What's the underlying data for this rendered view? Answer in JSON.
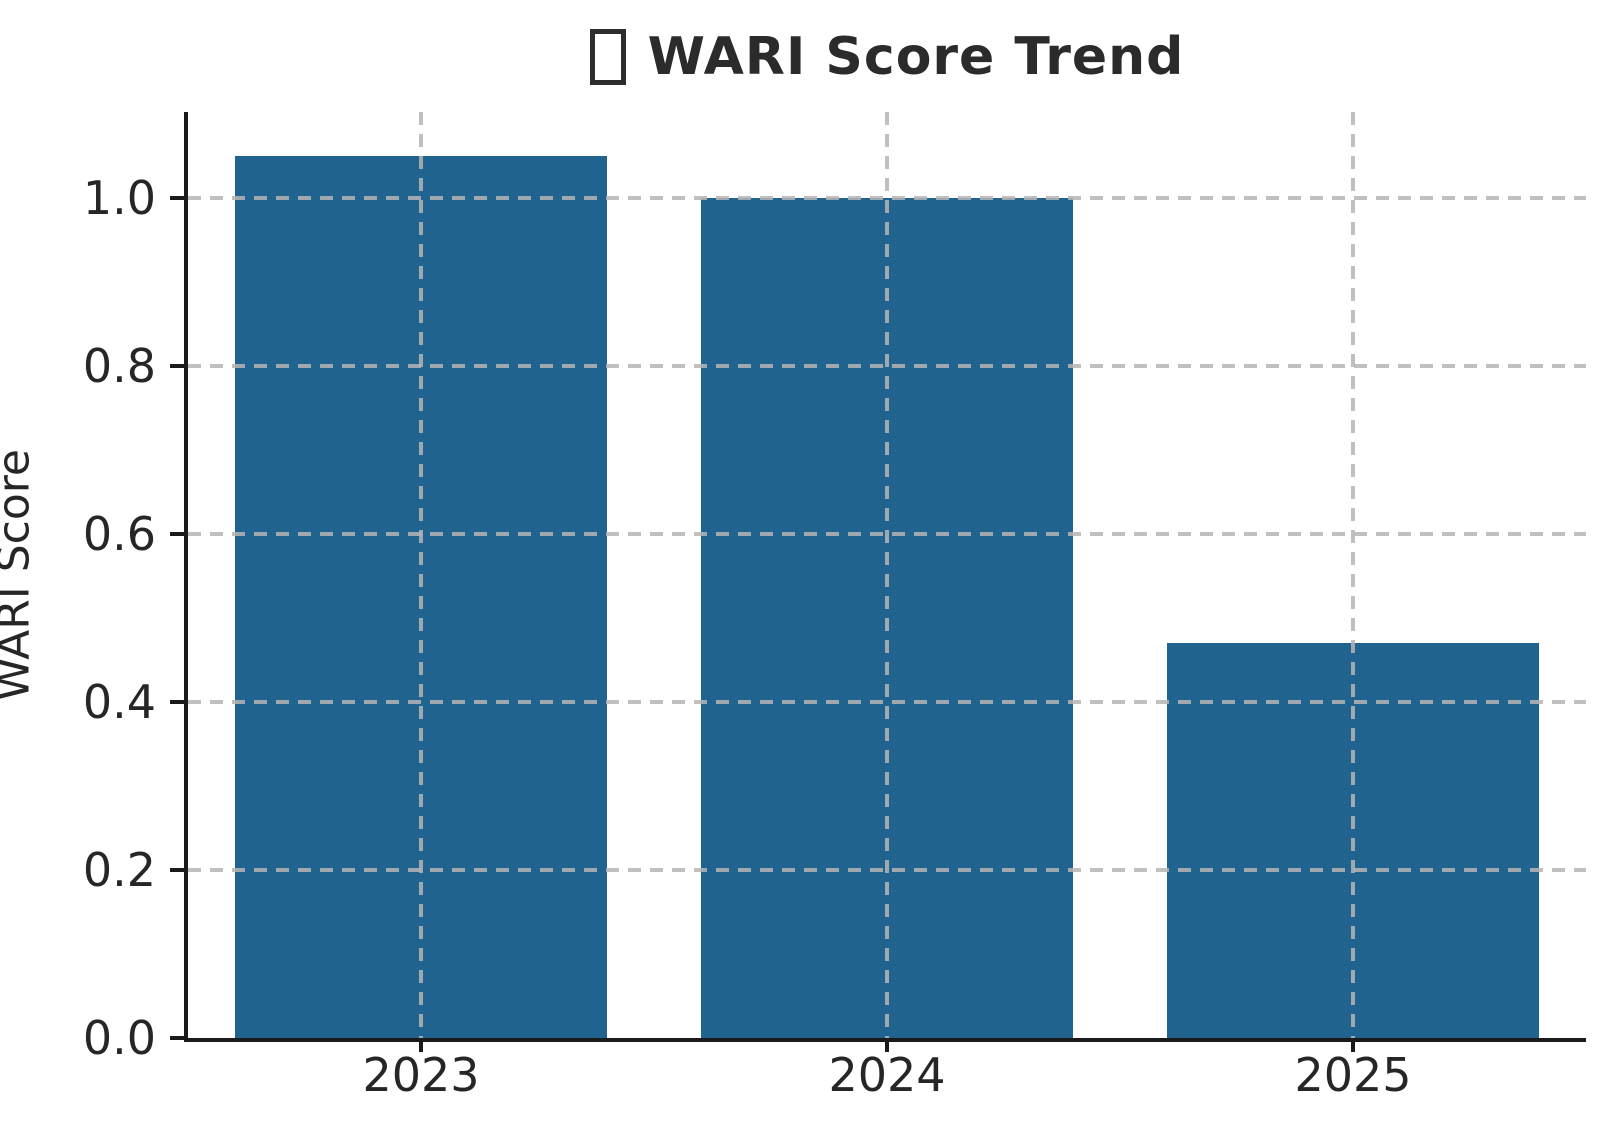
{
  "chart_data": {
    "type": "bar",
    "title": "WARI Score Trend",
    "title_prefix_icon": "missing-glyph-box-icon",
    "categories": [
      "2023",
      "2024",
      "2025"
    ],
    "values": [
      1.05,
      1.0,
      0.47
    ],
    "xlabel": "",
    "ylabel": "WARI Score",
    "ylim": [
      0,
      1.1025
    ],
    "yticks": [
      0.0,
      0.2,
      0.4,
      0.6,
      0.8,
      1.0
    ],
    "ytick_labels": [
      "0.0",
      "0.2",
      "0.4",
      "0.6",
      "0.8",
      "1.0"
    ],
    "bar_width_fraction": 0.8,
    "grid": "dashed, horizontal and vertical, drawn over bars",
    "legend": "none",
    "colors": {
      "bar": "#20638e",
      "grid": "#b5b5b5",
      "spine": "#1a1a1a",
      "text": "#262626",
      "background": "#ffffff"
    }
  }
}
